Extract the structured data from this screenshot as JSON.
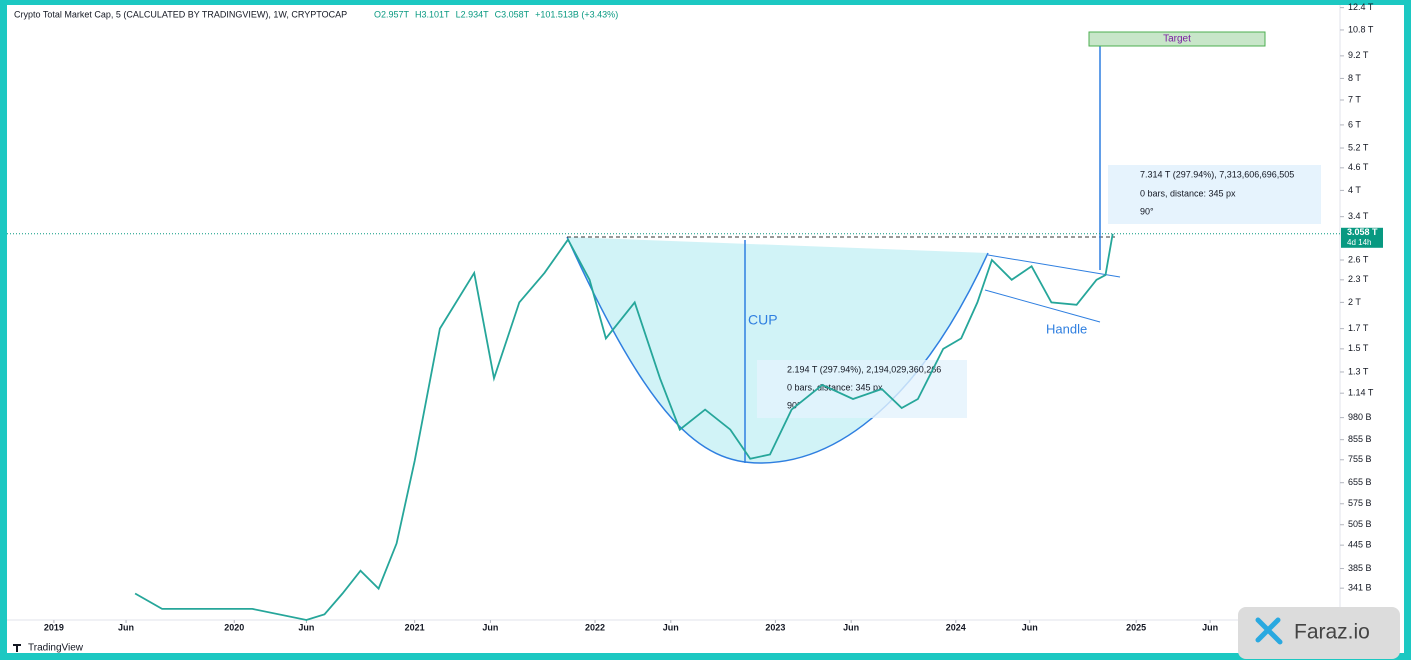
{
  "chart_data": {
    "type": "line",
    "title": "Crypto Total Market Cap, 5 (CALCULATED BY TRADINGVIEW), 1W, CRYPTOCAP",
    "ohlc": [
      "O2.957T",
      "H3.101T",
      "L2.934T",
      "C3.058T",
      "+101.513B (+3.43%)"
    ],
    "x": [
      2019.45,
      2019.6,
      2020.1,
      2020.4,
      2020.5,
      2020.6,
      2020.7,
      2020.8,
      2020.9,
      2021.0,
      2021.14,
      2021.33,
      2021.44,
      2021.58,
      2021.72,
      2021.85,
      2021.97,
      2022.06,
      2022.22,
      2022.36,
      2022.47,
      2022.61,
      2022.75,
      2022.86,
      2022.97,
      2023.09,
      2023.26,
      2023.43,
      2023.59,
      2023.7,
      2023.79,
      2023.93,
      2024.03,
      2024.12,
      2024.2,
      2024.31,
      2024.42,
      2024.53,
      2024.67,
      2024.78,
      2024.83,
      2024.87
    ],
    "values": [
      0.33,
      0.3,
      0.3,
      0.28,
      0.29,
      0.33,
      0.38,
      0.34,
      0.45,
      0.75,
      1.7,
      2.4,
      1.25,
      2.0,
      2.4,
      2.95,
      2.3,
      1.6,
      2.0,
      1.25,
      0.91,
      1.03,
      0.91,
      0.76,
      0.78,
      1.03,
      1.2,
      1.1,
      1.17,
      1.04,
      1.1,
      1.5,
      1.6,
      2.0,
      2.6,
      2.3,
      2.5,
      2.0,
      1.97,
      2.3,
      2.37,
      3.058
    ],
    "color": "#26a69a",
    "log_scale": true,
    "grid": false,
    "xlim": [
      2018.74,
      2026.13
    ],
    "xticks": [
      {
        "value": 2019,
        "label": "2019"
      },
      {
        "value": 2019.4,
        "label": "Jun"
      },
      {
        "value": 2020,
        "label": "2020"
      },
      {
        "value": 2020.4,
        "label": "Jun"
      },
      {
        "value": 2021,
        "label": "2021"
      },
      {
        "value": 2021.42,
        "label": "Jun"
      },
      {
        "value": 2022,
        "label": "2022"
      },
      {
        "value": 2022.42,
        "label": "Jun"
      },
      {
        "value": 2023,
        "label": "2023"
      },
      {
        "value": 2023.42,
        "label": "Jun"
      },
      {
        "value": 2024,
        "label": "2024"
      },
      {
        "value": 2024.41,
        "label": "Jun"
      },
      {
        "value": 2025,
        "label": "2025"
      },
      {
        "value": 2025.41,
        "label": "Jun"
      }
    ],
    "ylim": [
      0.28,
      13
    ],
    "yticks": [
      {
        "value": 12.4,
        "label": "12.4 T"
      },
      {
        "value": 10.8,
        "label": "10.8 T"
      },
      {
        "value": 9.2,
        "label": "9.2 T"
      },
      {
        "value": 8,
        "label": "8 T"
      },
      {
        "value": 7,
        "label": "7 T"
      },
      {
        "value": 6,
        "label": "6 T"
      },
      {
        "value": 5.2,
        "label": "5.2 T"
      },
      {
        "value": 4.6,
        "label": "4.6 T"
      },
      {
        "value": 4,
        "label": "4 T"
      },
      {
        "value": 3.4,
        "label": "3.4 T"
      },
      {
        "value": 2.6,
        "label": "2.6 T"
      },
      {
        "value": 2.3,
        "label": "2.3 T"
      },
      {
        "value": 2,
        "label": "2 T"
      },
      {
        "value": 1.7,
        "label": "1.7 T"
      },
      {
        "value": 1.5,
        "label": "1.5 T"
      },
      {
        "value": 1.3,
        "label": "1.3 T"
      },
      {
        "value": 1.14,
        "label": "1.14 T"
      },
      {
        "value": 0.98,
        "label": "980 B"
      },
      {
        "value": 0.855,
        "label": "855 B"
      },
      {
        "value": 0.755,
        "label": "755 B"
      },
      {
        "value": 0.655,
        "label": "655 B"
      },
      {
        "value": 0.575,
        "label": "575 B"
      },
      {
        "value": 0.505,
        "label": "505 B"
      },
      {
        "value": 0.445,
        "label": "445 B"
      },
      {
        "value": 0.385,
        "label": "385 B"
      },
      {
        "value": 0.341,
        "label": "341 B"
      }
    ],
    "price_label": "3.058 T",
    "countdown": "4d 14h",
    "annotations": {
      "cup": "CUP",
      "handle": "Handle",
      "target": "Target"
    },
    "measurements": [
      {
        "lines": [
          "7.314 T (297.94%), 7,313,606,696,505",
          "0 bars, distance: 345 px",
          "90°"
        ]
      },
      {
        "lines": [
          "2.194 T (297.94%), 2,194,029,360,266",
          "0 bars, distance: 345 px",
          "90°"
        ]
      }
    ],
    "brand": "TradingView",
    "watermark": "Faraz.io"
  }
}
